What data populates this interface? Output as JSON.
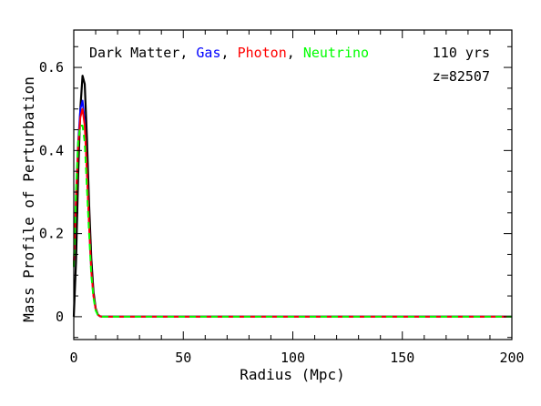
{
  "chart_data": {
    "type": "line",
    "xlabel": "Radius (Mpc)",
    "ylabel": "Mass Profile of Perturbation",
    "xlim": [
      0,
      200
    ],
    "ylim": [
      -0.055,
      0.69
    ],
    "x_ticks": [
      0,
      50,
      100,
      150,
      200
    ],
    "x_tick_labels": [
      "0",
      "50",
      "100",
      "150",
      "200"
    ],
    "y_ticks": [
      0,
      0.2,
      0.4,
      0.6
    ],
    "y_tick_labels": [
      "0",
      "0.2",
      "0.4",
      "0.6"
    ],
    "grid": false,
    "legend_placement": "top-left",
    "annotations": {
      "time": "110 yrs",
      "redshift": "z=82507"
    },
    "legend_separator": ",",
    "series": [
      {
        "name": "Dark Matter",
        "color": "#000000",
        "dash": "solid",
        "x": [
          0,
          1,
          2,
          3,
          4,
          5,
          6,
          7,
          8,
          9,
          10,
          11,
          12,
          13,
          14,
          15,
          20,
          50,
          100,
          150,
          200
        ],
        "y": [
          0.0,
          0.13,
          0.34,
          0.5,
          0.58,
          0.56,
          0.43,
          0.27,
          0.14,
          0.06,
          0.02,
          0.005,
          0.001,
          0.0,
          0.0,
          0.0,
          0.0,
          0.0,
          0.0,
          0.0,
          0.0
        ]
      },
      {
        "name": "Gas",
        "color": "#0000ff",
        "dash": "solid",
        "x": [
          0,
          1,
          2,
          3,
          4,
          5,
          6,
          7,
          8,
          9,
          10,
          11,
          12,
          13,
          14,
          15,
          20,
          50,
          100,
          150,
          200
        ],
        "y": [
          0.12,
          0.28,
          0.42,
          0.5,
          0.52,
          0.47,
          0.35,
          0.22,
          0.11,
          0.05,
          0.018,
          0.005,
          0.001,
          0.0,
          0.0,
          0.0,
          0.0,
          0.0,
          0.0,
          0.0,
          0.0
        ]
      },
      {
        "name": "Photon",
        "color": "#ff0000",
        "dash": "solid",
        "x": [
          0,
          1,
          2,
          3,
          4,
          5,
          6,
          7,
          8,
          9,
          10,
          11,
          12,
          13,
          14,
          15,
          20,
          50,
          100,
          150,
          200
        ],
        "y": [
          0.12,
          0.28,
          0.41,
          0.48,
          0.5,
          0.46,
          0.35,
          0.22,
          0.11,
          0.05,
          0.018,
          0.005,
          0.001,
          0.0,
          0.0,
          0.0,
          0.0,
          0.0,
          0.0,
          0.0,
          0.0
        ]
      },
      {
        "name": "Neutrino",
        "color": "#00ff00",
        "dash": "dashed",
        "x": [
          0,
          1,
          2,
          3,
          4,
          5,
          6,
          7,
          8,
          9,
          10,
          11,
          12,
          13,
          14,
          15,
          20,
          50,
          100,
          150,
          200
        ],
        "y": [
          0.12,
          0.3,
          0.42,
          0.46,
          0.46,
          0.42,
          0.31,
          0.2,
          0.1,
          0.045,
          0.015,
          0.004,
          0.001,
          0.0,
          0.0,
          0.0,
          0.0,
          0.0,
          0.0,
          0.0,
          0.0
        ]
      }
    ]
  }
}
